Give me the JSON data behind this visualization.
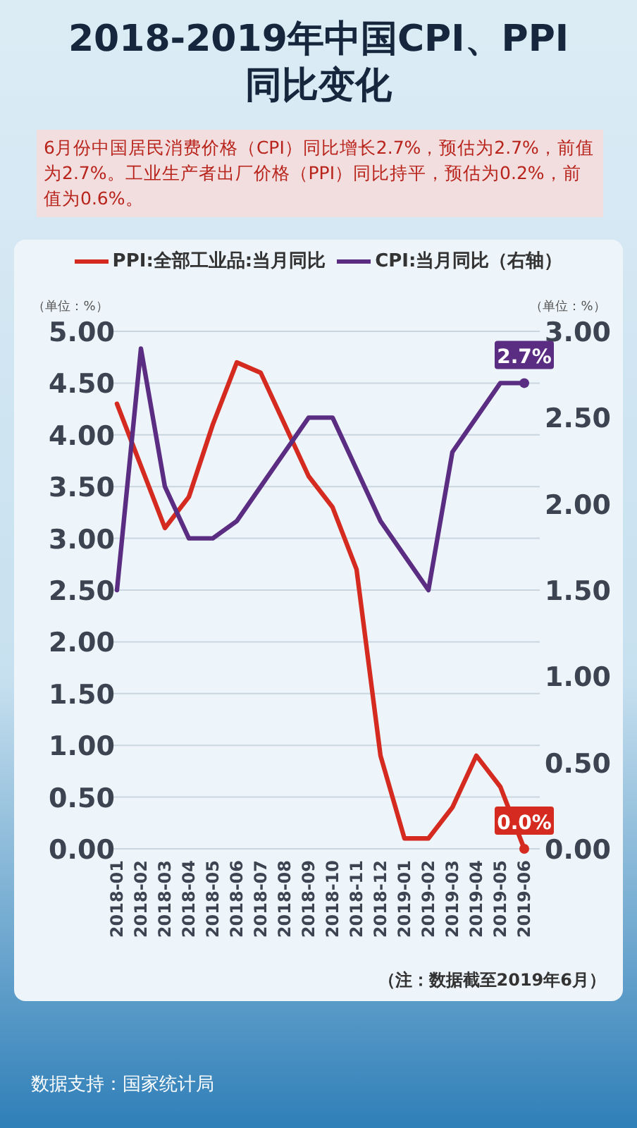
{
  "chart_data": {
    "type": "line",
    "title": "2018-2019年中国CPI、PPI\n同比变化",
    "subtitle": "6月份中国居民消费价格（CPI）同比增长2.7%，预估为2.7%，前值为2.7%。工业生产者出厂价格（PPI）同比持平，预估为0.2%，前值为0.6%。",
    "categories": [
      "2018-01",
      "2018-02",
      "2018-03",
      "2018-04",
      "2018-05",
      "2018-06",
      "2018-07",
      "2018-08",
      "2018-09",
      "2018-10",
      "2018-11",
      "2018-12",
      "2019-01",
      "2019-02",
      "2019-03",
      "2019-04",
      "2019-05",
      "2019-06"
    ],
    "series": [
      {
        "name": "PPI:全部工业品:当月同比",
        "color": "#d42a1f",
        "values": [
          4.3,
          3.7,
          3.1,
          3.4,
          4.1,
          4.7,
          4.6,
          4.1,
          3.6,
          3.3,
          2.7,
          0.9,
          0.1,
          0.1,
          0.4,
          0.9,
          0.6,
          0.0
        ],
        "value_labels": [
          null,
          null,
          null,
          null,
          null,
          null,
          null,
          null,
          null,
          null,
          null,
          null,
          null,
          null,
          null,
          null,
          null,
          "0.0%"
        ]
      },
      {
        "name": "CPI:当月同比（右轴）",
        "color": "#5b2d82",
        "axis": "y2",
        "values": [
          1.5,
          2.9,
          2.1,
          1.8,
          1.8,
          1.9,
          2.1,
          2.3,
          2.5,
          2.5,
          2.2,
          1.9,
          1.7,
          1.5,
          2.3,
          2.5,
          2.7,
          2.7
        ],
        "value_labels": [
          null,
          null,
          null,
          null,
          null,
          null,
          null,
          null,
          null,
          null,
          null,
          null,
          null,
          null,
          null,
          null,
          null,
          "2.7%"
        ]
      }
    ],
    "ylabel": "（单位：%）",
    "y2label": "（单位：%）",
    "ylim": [
      0,
      5
    ],
    "yticks": [
      {
        "value": 0,
        "label": "0.00"
      },
      {
        "value": 0.5,
        "label": "0.50"
      },
      {
        "value": 1,
        "label": "1.00"
      },
      {
        "value": 1.5,
        "label": "1.50"
      },
      {
        "value": 2,
        "label": "2.00"
      },
      {
        "value": 2.5,
        "label": "2.50"
      },
      {
        "value": 3,
        "label": "3.00"
      },
      {
        "value": 3.5,
        "label": "3.50"
      },
      {
        "value": 4,
        "label": "4.00"
      },
      {
        "value": 4.5,
        "label": "4.50"
      },
      {
        "value": 5,
        "label": "5.00"
      }
    ],
    "y2lim": [
      0,
      3
    ],
    "y2ticks": [
      {
        "value": 0,
        "label": "0.00"
      },
      {
        "value": 0.5,
        "label": "0.50"
      },
      {
        "value": 1,
        "label": "1.00"
      },
      {
        "value": 1.5,
        "label": "1.50"
      },
      {
        "value": 2,
        "label": "2.00"
      },
      {
        "value": 2.5,
        "label": "2.50"
      },
      {
        "value": 3,
        "label": "3.00"
      }
    ],
    "grid": "y",
    "legend": "top",
    "marker": "none",
    "line_style": "solid",
    "annotations": [
      "（注：数据截至2019年6月）",
      "数据支持：国家统计局"
    ]
  }
}
